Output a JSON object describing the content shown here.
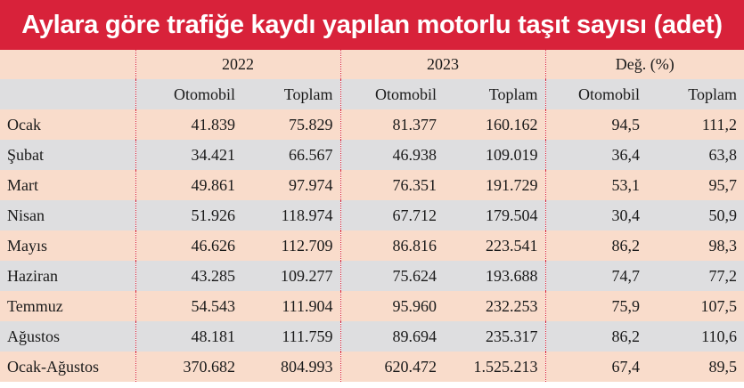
{
  "title": "Aylara göre trafiğe kaydı yapılan motorlu taşıt sayısı (adet)",
  "column_groups": [
    "2022",
    "2023",
    "Değ. (%)"
  ],
  "sub_headers": [
    "Otomobil",
    "Toplam",
    "Otomobil",
    "Toplam",
    "Otomobil",
    "Toplam"
  ],
  "rows": [
    {
      "month": "Ocak",
      "v": [
        "41.839",
        "75.829",
        "81.377",
        "160.162",
        "94,5",
        "111,2"
      ]
    },
    {
      "month": "Şubat",
      "v": [
        "34.421",
        "66.567",
        "46.938",
        "109.019",
        "36,4",
        "63,8"
      ]
    },
    {
      "month": "Mart",
      "v": [
        "49.861",
        "97.974",
        "76.351",
        "191.729",
        "53,1",
        "95,7"
      ]
    },
    {
      "month": "Nisan",
      "v": [
        "51.926",
        "118.974",
        "67.712",
        "179.504",
        "30,4",
        "50,9"
      ]
    },
    {
      "month": "Mayıs",
      "v": [
        "46.626",
        "112.709",
        "86.816",
        "223.541",
        "86,2",
        "98,3"
      ]
    },
    {
      "month": "Haziran",
      "v": [
        "43.285",
        "109.277",
        "75.624",
        "193.688",
        "74,7",
        "77,2"
      ]
    },
    {
      "month": "Temmuz",
      "v": [
        "54.543",
        "111.904",
        "95.960",
        "232.253",
        "75,9",
        "107,5"
      ]
    },
    {
      "month": "Ağustos",
      "v": [
        "48.181",
        "111.759",
        "89.694",
        "235.317",
        "86,2",
        "110,6"
      ]
    },
    {
      "month": "Ocak-Ağustos",
      "v": [
        "370.682",
        "804.993",
        "620.472",
        "1.525.213",
        "67,4",
        "89,5"
      ]
    }
  ],
  "colors": {
    "title_bg": "#d8223a",
    "row_peach": "#f9dccb",
    "row_grey": "#dedee0",
    "separator": "#d8223a"
  }
}
